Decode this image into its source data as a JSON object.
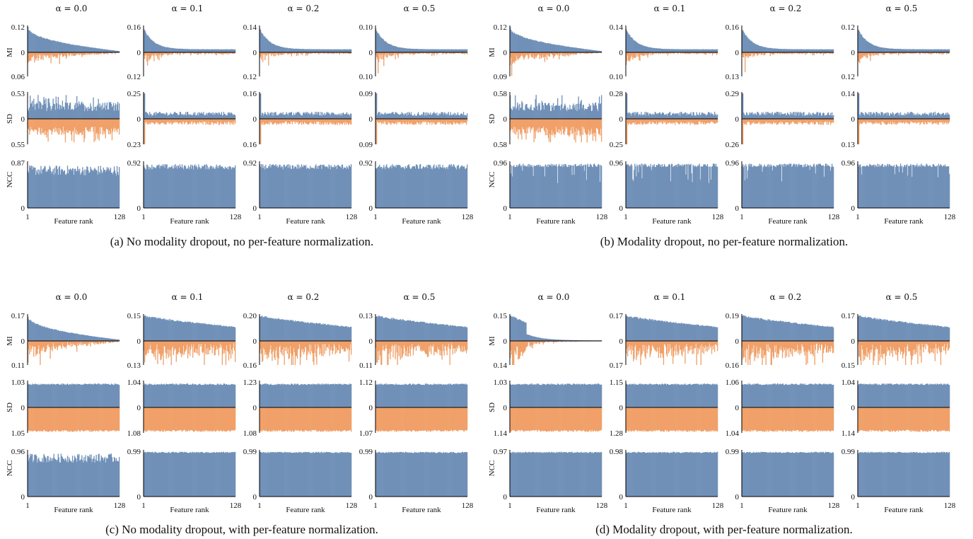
{
  "colors": {
    "positive": "#7090b8",
    "negative": "#f0a068",
    "axis": "#000000"
  },
  "figure": {
    "row_labels": [
      "MI",
      "SD",
      "NCC"
    ],
    "x_label": "Feature rank",
    "x_ticks": [
      "1",
      "128"
    ],
    "zero_tick": "0",
    "alpha_titles": [
      "α = 0.0",
      "α = 0.1",
      "α = 0.2",
      "α = 0.5"
    ]
  },
  "chart_data": [
    {
      "type": "bar",
      "panel": "a",
      "caption": "(a) No modality dropout, no per-feature normalization.",
      "mi": {
        "top": [
          "0.12",
          "0.16",
          "0.14",
          "0.10"
        ],
        "bottom": [
          "0.06",
          "0.12",
          "0.12",
          "0.10"
        ]
      },
      "sd": {
        "top": [
          "0.53",
          "0.25",
          "0.16",
          "0.09"
        ],
        "bottom": [
          "0.55",
          "0.23",
          "0.16",
          "0.09"
        ]
      },
      "ncc": {
        "top": [
          "0.87",
          "0.92",
          "0.92",
          "0.92"
        ]
      }
    },
    {
      "type": "bar",
      "panel": "b",
      "caption": "(b) Modality dropout, no per-feature normalization.",
      "mi": {
        "top": [
          "0.12",
          "0.14",
          "0.16",
          "0.12"
        ],
        "bottom": [
          "0.09",
          "0.10",
          "0.13",
          "0.12"
        ]
      },
      "sd": {
        "top": [
          "0.58",
          "0.28",
          "0.29",
          "0.14"
        ],
        "bottom": [
          "0.58",
          "0.25",
          "0.26",
          "0.13"
        ]
      },
      "ncc": {
        "top": [
          "0.96",
          "0.96",
          "0.96",
          "0.96"
        ]
      }
    },
    {
      "type": "bar",
      "panel": "c",
      "caption": "(c) No modality dropout, with per-feature normalization.",
      "mi": {
        "top": [
          "0.17",
          "0.15",
          "0.20",
          "0.13"
        ],
        "bottom": [
          "0.11",
          "0.13",
          "0.16",
          "0.11"
        ]
      },
      "sd": {
        "top": [
          "1.03",
          "1.04",
          "1.23",
          "1.12"
        ],
        "bottom": [
          "1.05",
          "1.08",
          "1.08",
          "1.07"
        ]
      },
      "ncc": {
        "top": [
          "0.96",
          "0.99",
          "0.99",
          "0.99"
        ]
      }
    },
    {
      "type": "bar",
      "panel": "d",
      "caption": "(d) Modality dropout, with per-feature normalization.",
      "mi": {
        "top": [
          "0.15",
          "0.17",
          "0.19",
          "0.17"
        ],
        "bottom": [
          "0.14",
          "0.17",
          "0.16",
          "0.15"
        ]
      },
      "sd": {
        "top": [
          "1.03",
          "1.15",
          "1.06",
          "1.04"
        ],
        "bottom": [
          "1.14",
          "1.28",
          "1.04",
          "1.14"
        ]
      },
      "ncc": {
        "top": [
          "0.97",
          "0.98",
          "0.99",
          "0.99"
        ]
      }
    }
  ]
}
